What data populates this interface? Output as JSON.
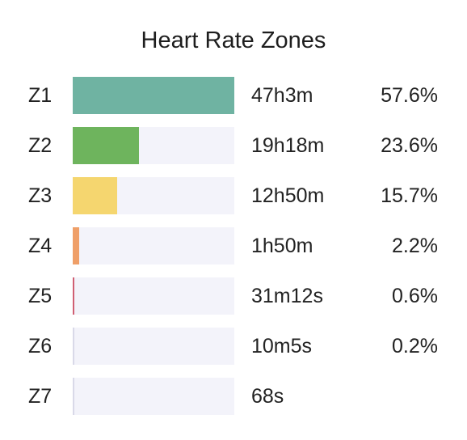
{
  "chart_data": {
    "type": "bar",
    "title": "Heart Rate Zones",
    "categories": [
      "Z1",
      "Z2",
      "Z3",
      "Z4",
      "Z5",
      "Z6",
      "Z7"
    ],
    "durations": [
      "47h3m",
      "19h18m",
      "12h50m",
      "1h50m",
      "31m12s",
      "10m5s",
      "68s"
    ],
    "percent_labels": [
      "57.6%",
      "23.6%",
      "15.7%",
      "2.2%",
      "0.6%",
      "0.2%",
      ""
    ],
    "values": [
      57.6,
      23.6,
      15.7,
      2.2,
      0.6,
      0.2,
      0.02
    ],
    "xlim": [
      0,
      57.6
    ],
    "colors": [
      "#6fb3a2",
      "#6eb45d",
      "#f5d66f",
      "#ef9f68",
      "#d05f73",
      "#d9d9e8",
      "#d9d9e8"
    ]
  }
}
